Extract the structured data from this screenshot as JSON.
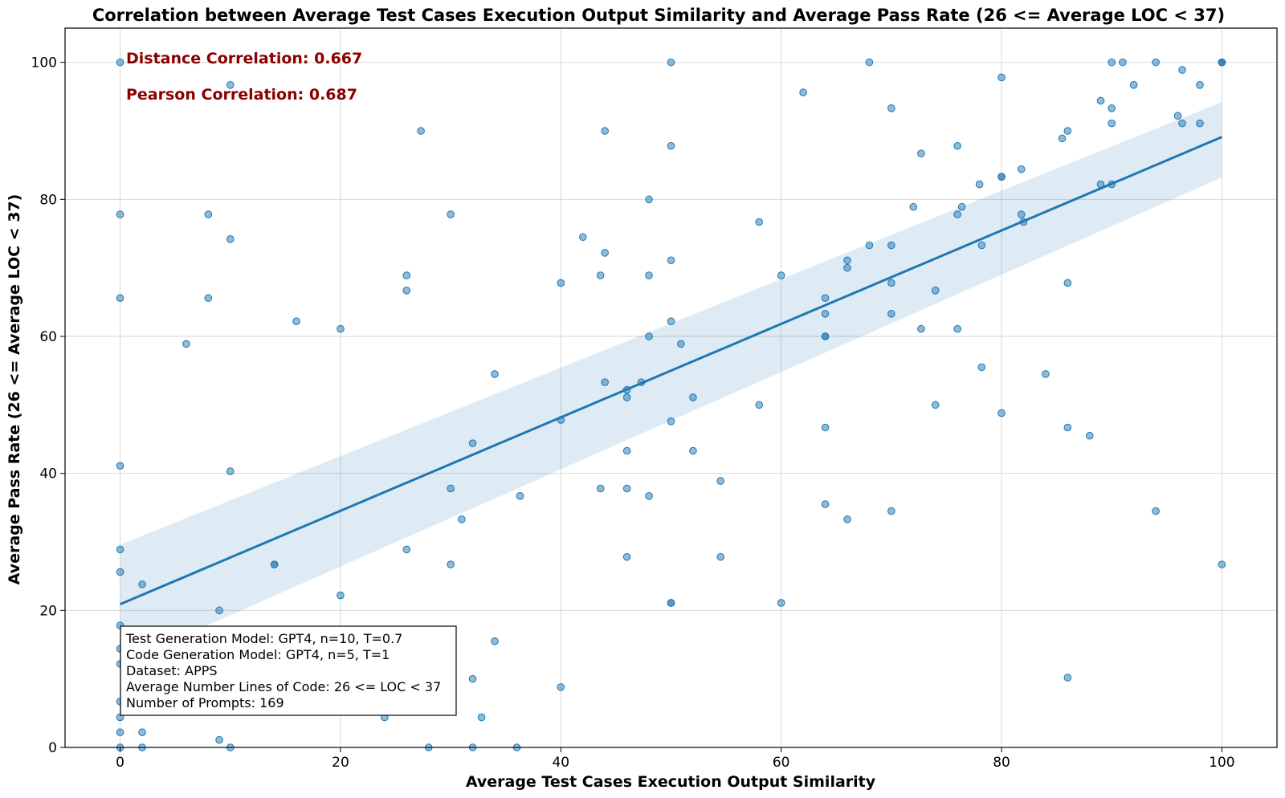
{
  "chart_data": {
    "type": "scatter",
    "title": "Correlation between Average Test Cases Execution Output Similarity and Average Pass Rate (26 <= Average LOC < 37)",
    "xlabel": "Average Test Cases Execution Output Similarity",
    "ylabel": "Average Pass Rate (26 <= Average LOC < 37)",
    "xlim": [
      -5,
      105
    ],
    "ylim": [
      0,
      105
    ],
    "xticks": [
      0,
      20,
      40,
      60,
      80,
      100
    ],
    "yticks": [
      0,
      20,
      40,
      60,
      80,
      100
    ],
    "grid": true,
    "colors": {
      "points": "#1f77b4",
      "line": "#1f77b4",
      "band": "#1f77b4",
      "annotation": "#8b0000"
    },
    "annotations": [
      "Distance Correlation: 0.667",
      "Pearson Correlation: 0.687"
    ],
    "regression": {
      "x": [
        0,
        100
      ],
      "y": [
        20.9,
        89.1
      ],
      "ci_low": [
        12.2,
        83.2
      ],
      "ci_high": [
        29.6,
        94.2
      ]
    },
    "info_box": [
      "Test Generation Model: GPT4, n=10, T=0.7",
      "Code Generation Model: GPT4, n=5, T=1",
      "Dataset: APPS",
      "Average Number Lines of Code: 26 <= LOC < 37",
      "Number of Prompts: 169"
    ],
    "points": [
      [
        0,
        100
      ],
      [
        0,
        77.8
      ],
      [
        0,
        65.6
      ],
      [
        0,
        41.1
      ],
      [
        0,
        28.9
      ],
      [
        0,
        25.6
      ],
      [
        0,
        17.8
      ],
      [
        0,
        14.4
      ],
      [
        0,
        12.2
      ],
      [
        0,
        6.7
      ],
      [
        0,
        4.4
      ],
      [
        0,
        2.2
      ],
      [
        0,
        0
      ],
      [
        2,
        23.8
      ],
      [
        2,
        2.2
      ],
      [
        2,
        0
      ],
      [
        6,
        58.9
      ],
      [
        7.5,
        5.6
      ],
      [
        8,
        77.8
      ],
      [
        8,
        65.6
      ],
      [
        9,
        20
      ],
      [
        9,
        1.1
      ],
      [
        10,
        96.7
      ],
      [
        10,
        74.2
      ],
      [
        10,
        40.3
      ],
      [
        10,
        0
      ],
      [
        14,
        26.7
      ],
      [
        14,
        26.7
      ],
      [
        14.5,
        16.7
      ],
      [
        16,
        62.2
      ],
      [
        16,
        6.7
      ],
      [
        16,
        5.6
      ],
      [
        18,
        12.2
      ],
      [
        20,
        61.1
      ],
      [
        20,
        22.2
      ],
      [
        24,
        4.4
      ],
      [
        25.5,
        12.2
      ],
      [
        26,
        68.9
      ],
      [
        26,
        66.7
      ],
      [
        26,
        28.9
      ],
      [
        27.3,
        90
      ],
      [
        28,
        0
      ],
      [
        30,
        77.8
      ],
      [
        30,
        37.8
      ],
      [
        30,
        26.7
      ],
      [
        31,
        33.3
      ],
      [
        32,
        44.4
      ],
      [
        32,
        10
      ],
      [
        32,
        0
      ],
      [
        32.8,
        4.4
      ],
      [
        34,
        54.5
      ],
      [
        34,
        15.5
      ],
      [
        36,
        0
      ],
      [
        36.3,
        36.7
      ],
      [
        40,
        67.8
      ],
      [
        40,
        47.8
      ],
      [
        40,
        8.8
      ],
      [
        42,
        74.5
      ],
      [
        43.6,
        68.9
      ],
      [
        43.6,
        37.8
      ],
      [
        44,
        90
      ],
      [
        44,
        72.2
      ],
      [
        44,
        53.3
      ],
      [
        46,
        52.2
      ],
      [
        46,
        51.1
      ],
      [
        46,
        43.3
      ],
      [
        46,
        37.8
      ],
      [
        46,
        27.8
      ],
      [
        47.3,
        53.3
      ],
      [
        48,
        80
      ],
      [
        48,
        68.9
      ],
      [
        48,
        60
      ],
      [
        48,
        36.7
      ],
      [
        50,
        100
      ],
      [
        50,
        87.8
      ],
      [
        50,
        71.1
      ],
      [
        50,
        62.2
      ],
      [
        50,
        47.6
      ],
      [
        50,
        21.1
      ],
      [
        50,
        21.1
      ],
      [
        50.9,
        58.9
      ],
      [
        52,
        51.1
      ],
      [
        52,
        43.3
      ],
      [
        54.5,
        38.9
      ],
      [
        54.5,
        27.8
      ],
      [
        58,
        76.7
      ],
      [
        58,
        50
      ],
      [
        60,
        68.9
      ],
      [
        60,
        21.1
      ],
      [
        62,
        95.6
      ],
      [
        64,
        65.6
      ],
      [
        64,
        63.3
      ],
      [
        64,
        60
      ],
      [
        64,
        60
      ],
      [
        64,
        46.7
      ],
      [
        64,
        35.5
      ],
      [
        66,
        71.1
      ],
      [
        66,
        70
      ],
      [
        66,
        33.3
      ],
      [
        68,
        100
      ],
      [
        68,
        73.3
      ],
      [
        70,
        93.3
      ],
      [
        70,
        73.3
      ],
      [
        70,
        67.8
      ],
      [
        70,
        63.3
      ],
      [
        70,
        34.5
      ],
      [
        72,
        78.9
      ],
      [
        72.7,
        86.7
      ],
      [
        72.7,
        61.1
      ],
      [
        74,
        66.7
      ],
      [
        74,
        50
      ],
      [
        76,
        87.8
      ],
      [
        76,
        77.8
      ],
      [
        76,
        61.1
      ],
      [
        76.4,
        78.9
      ],
      [
        78,
        82.2
      ],
      [
        78.2,
        73.3
      ],
      [
        78.2,
        55.5
      ],
      [
        80,
        97.8
      ],
      [
        80,
        83.3
      ],
      [
        80,
        83.3
      ],
      [
        80,
        48.8
      ],
      [
        81.8,
        84.4
      ],
      [
        81.8,
        77.8
      ],
      [
        82,
        76.7
      ],
      [
        84,
        54.5
      ],
      [
        85.5,
        88.9
      ],
      [
        86,
        90
      ],
      [
        86,
        67.8
      ],
      [
        86,
        46.7
      ],
      [
        86,
        10.2
      ],
      [
        88,
        45.5
      ],
      [
        89,
        94.4
      ],
      [
        89,
        82.2
      ],
      [
        90,
        100
      ],
      [
        90,
        93.3
      ],
      [
        90,
        91.1
      ],
      [
        90,
        82.2
      ],
      [
        91,
        100
      ],
      [
        92,
        96.7
      ],
      [
        94,
        100
      ],
      [
        94,
        34.5
      ],
      [
        96,
        92.2
      ],
      [
        96.4,
        98.9
      ],
      [
        96.4,
        91.1
      ],
      [
        98,
        96.7
      ],
      [
        98,
        91.1
      ],
      [
        100,
        100
      ],
      [
        100,
        100
      ],
      [
        100,
        100
      ],
      [
        100,
        26.7
      ]
    ]
  }
}
